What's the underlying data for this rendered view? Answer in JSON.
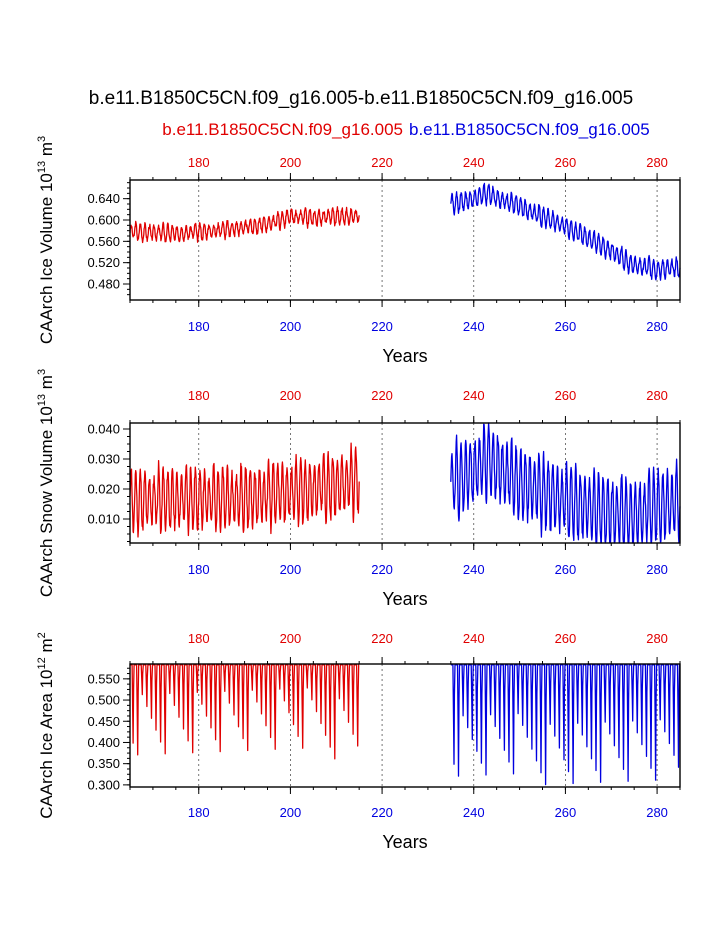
{
  "figure": {
    "title": "b.e11.B1850C5CN.f09_g16.005-b.e11.B1850C5CN.f09_g16.005",
    "legend_left": "b.e11.B1850C5CN.f09_g16.005",
    "legend_right": "b.e11.B1850C5CN.f09_g16.005",
    "colors": {
      "series1": "#e00000",
      "series2": "#0000e0"
    }
  },
  "chart_data": [
    {
      "type": "line",
      "title": "",
      "xlabel": "Years",
      "ylabel": "CAArch Ice Volume",
      "ylabel_unit_prefix": "10",
      "ylabel_unit_exp": "13",
      "ylabel_unit_suffix": "m",
      "ylabel_unit_suffix_exp": "3",
      "xlim": [
        165,
        285
      ],
      "ylim": [
        0.45,
        0.675
      ],
      "x_ticks": [
        "180",
        "200",
        "220",
        "240",
        "260",
        "280"
      ],
      "y_ticks": [
        "0.480",
        "0.520",
        "0.560",
        "0.600",
        "0.640"
      ],
      "series": [
        {
          "name": "b.e11.B1850C5CN.f09_g16.005",
          "color": "#e00000",
          "x_start": 165,
          "x_end": 215,
          "trend": [
            [
              165,
              0.578
            ],
            [
              175,
              0.575
            ],
            [
              180,
              0.578
            ],
            [
              190,
              0.586
            ],
            [
              195,
              0.593
            ],
            [
              200,
              0.606
            ],
            [
              205,
              0.604
            ],
            [
              210,
              0.607
            ],
            [
              215,
              0.607
            ]
          ],
          "amplitude": 0.026,
          "seed": 3,
          "noise": 0.009
        },
        {
          "name": "b.e11.B1850C5CN.f09_g16.005",
          "color": "#0000e0",
          "x_start": 235,
          "x_end": 285,
          "trend": [
            [
              235,
              0.63
            ],
            [
              240,
              0.64
            ],
            [
              243,
              0.65
            ],
            [
              250,
              0.625
            ],
            [
              255,
              0.607
            ],
            [
              260,
              0.588
            ],
            [
              265,
              0.567
            ],
            [
              270,
              0.542
            ],
            [
              275,
              0.515
            ],
            [
              280,
              0.508
            ],
            [
              285,
              0.51
            ]
          ],
          "amplitude": 0.032,
          "seed": 7,
          "noise": 0.01
        }
      ]
    },
    {
      "type": "line",
      "title": "",
      "xlabel": "Years",
      "ylabel": "CAArch Snow Volume",
      "ylabel_unit_prefix": "10",
      "ylabel_unit_exp": "13",
      "ylabel_unit_suffix": "m",
      "ylabel_unit_suffix_exp": "3",
      "xlim": [
        165,
        285
      ],
      "ylim": [
        0.002,
        0.042
      ],
      "x_ticks": [
        "180",
        "200",
        "220",
        "240",
        "260",
        "280"
      ],
      "y_ticks": [
        "0.010",
        "0.020",
        "0.030",
        "0.040"
      ],
      "series": [
        {
          "name": "b.e11.B1850C5CN.f09_g16.005",
          "color": "#e00000",
          "x_start": 165,
          "x_end": 215,
          "trend": [
            [
              165,
              0.016
            ],
            [
              180,
              0.017
            ],
            [
              190,
              0.017
            ],
            [
              200,
              0.019
            ],
            [
              210,
              0.021
            ],
            [
              215,
              0.023
            ]
          ],
          "amplitude": 0.019,
          "seed": 11,
          "noise": 0.004
        },
        {
          "name": "b.e11.B1850C5CN.f09_g16.005",
          "color": "#0000e0",
          "x_start": 235,
          "x_end": 285,
          "trend": [
            [
              235,
              0.022
            ],
            [
              240,
              0.026
            ],
            [
              243,
              0.03
            ],
            [
              250,
              0.022
            ],
            [
              260,
              0.016
            ],
            [
              270,
              0.012
            ],
            [
              275,
              0.011
            ],
            [
              280,
              0.014
            ],
            [
              285,
              0.016
            ]
          ],
          "amplitude": 0.022,
          "seed": 19,
          "noise": 0.004
        }
      ]
    },
    {
      "type": "line",
      "title": "",
      "xlabel": "Years",
      "ylabel": "CAArch Ice Area",
      "ylabel_unit_prefix": "10",
      "ylabel_unit_exp": "12",
      "ylabel_unit_suffix": "m",
      "ylabel_unit_suffix_exp": "2",
      "xlim": [
        165,
        285
      ],
      "ylim": [
        0.295,
        0.585
      ],
      "x_ticks": [
        "180",
        "200",
        "220",
        "240",
        "260",
        "280"
      ],
      "y_ticks": [
        "0.300",
        "0.350",
        "0.400",
        "0.450",
        "0.500",
        "0.550"
      ],
      "series": [
        {
          "name": "b.e11.B1850C5CN.f09_g16.005",
          "color": "#e00000",
          "x_start": 165,
          "x_end": 215,
          "cap": 0.583,
          "min_range": [
            0.36,
            0.53
          ],
          "seed": 23
        },
        {
          "name": "b.e11.B1850C5CN.f09_g16.005",
          "color": "#0000e0",
          "x_start": 235,
          "x_end": 285,
          "cap": 0.583,
          "min_range": [
            0.3,
            0.47
          ],
          "seed": 29
        }
      ]
    }
  ]
}
